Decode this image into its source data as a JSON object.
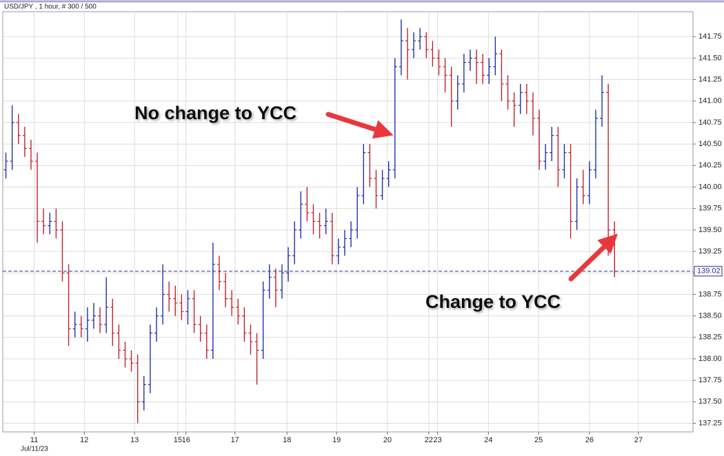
{
  "chart_data": {
    "type": "ohlc",
    "title": "USD/JPY , 1 hour, # 300 / 500",
    "x_date_label": "Jul/11/23",
    "annotations": [
      "No change to YCC",
      "Change to YCC"
    ],
    "up_color": "#1f2fa8",
    "down_color": "#c0202e",
    "grid": true,
    "last_price": 139.02,
    "last_price_color": "#2a2a9a",
    "xlim": [
      0,
      110
    ],
    "xticks": [
      {
        "value": 5,
        "label": "11"
      },
      {
        "value": 13,
        "label": "12"
      },
      {
        "value": 21,
        "label": "13"
      },
      {
        "value": 27.9,
        "label": "15"
      },
      {
        "value": 29.2,
        "label": "16"
      },
      {
        "value": 37,
        "label": "17"
      },
      {
        "value": 45.3,
        "label": "18"
      },
      {
        "value": 53.2,
        "label": "19"
      },
      {
        "value": 61.3,
        "label": "20"
      },
      {
        "value": 67.9,
        "label": "22"
      },
      {
        "value": 69.3,
        "label": "23"
      },
      {
        "value": 77.4,
        "label": "24"
      },
      {
        "value": 85.4,
        "label": "25"
      },
      {
        "value": 93.5,
        "label": "26"
      },
      {
        "value": 101.3,
        "label": "27"
      }
    ],
    "ylim": [
      137.15,
      142.04
    ],
    "yticks": [
      137.25,
      {
        "value": 137.5,
        "label": "137.50"
      },
      137.75,
      {
        "value": 138,
        "label": "138.00"
      },
      138.25,
      {
        "value": 138.5,
        "label": "138.50"
      },
      138.75,
      {
        "value": 139,
        "label": "139.00"
      },
      139.25,
      {
        "value": 139.5,
        "label": "139.50"
      },
      139.75,
      {
        "value": 140,
        "label": "140.00"
      },
      140.25,
      {
        "value": 140.5,
        "label": "140.50"
      },
      140.75,
      {
        "value": 141,
        "label": "141.00"
      },
      141.25,
      {
        "value": 141.5,
        "label": "141.50"
      },
      141.75
    ],
    "open": [
      140.2,
      140.3,
      140.75,
      140.6,
      140.45,
      140.3,
      139.6,
      139.55,
      139.6,
      139.5,
      139.0,
      138.35,
      138.4,
      138.35,
      138.45,
      138.5,
      138.4,
      138.6,
      138.3,
      138.1,
      138.0,
      137.95,
      137.5,
      137.7,
      138.3,
      138.5,
      138.75,
      138.7,
      138.65,
      138.55,
      138.7,
      138.4,
      138.3,
      138.1,
      139.1,
      138.9,
      138.7,
      138.6,
      138.5,
      138.3,
      138.2,
      138.1,
      138.8,
      138.95,
      138.8,
      139.0,
      139.2,
      139.5,
      139.8,
      139.7,
      139.6,
      139.55,
      139.6,
      139.2,
      139.3,
      139.4,
      139.5,
      139.9,
      140.4,
      140.1,
      139.9,
      140.1,
      140.2,
      141.4,
      141.7,
      141.6,
      141.7,
      141.75,
      141.6,
      141.5,
      141.4,
      141.3,
      141.0,
      141.2,
      141.45,
      141.5,
      141.45,
      141.3,
      141.4,
      141.55,
      141.2,
      141.0,
      140.95,
      141.1,
      141.0,
      140.8,
      140.3,
      140.4,
      140.6,
      140.2,
      140.4,
      139.6,
      140.0,
      139.9,
      140.2,
      140.8,
      141.1,
      139.5
    ],
    "high": [
      140.4,
      140.95,
      140.85,
      140.7,
      140.55,
      140.4,
      139.75,
      139.7,
      139.75,
      139.6,
      139.1,
      138.55,
      138.5,
      138.6,
      138.65,
      138.6,
      138.95,
      138.7,
      138.4,
      138.2,
      138.1,
      138.05,
      137.8,
      138.4,
      138.6,
      139.1,
      138.9,
      138.85,
      138.75,
      138.8,
      138.8,
      138.5,
      138.4,
      139.35,
      139.2,
      139.0,
      138.8,
      138.7,
      138.6,
      138.4,
      138.3,
      138.9,
      139.1,
      139.05,
      139.1,
      139.3,
      139.6,
      139.95,
      140.0,
      139.8,
      139.7,
      139.75,
      139.7,
      139.4,
      139.5,
      139.6,
      140.0,
      140.5,
      140.5,
      140.2,
      140.2,
      140.3,
      141.5,
      141.95,
      141.85,
      141.8,
      141.85,
      141.8,
      141.7,
      141.6,
      141.5,
      141.4,
      141.3,
      141.55,
      141.6,
      141.6,
      141.55,
      141.5,
      141.75,
      141.6,
      141.3,
      141.1,
      141.2,
      141.2,
      141.1,
      140.9,
      140.5,
      140.7,
      140.7,
      140.5,
      140.5,
      140.1,
      140.2,
      140.3,
      140.9,
      141.3,
      141.2,
      139.6
    ],
    "low": [
      140.1,
      140.2,
      140.5,
      140.35,
      140.2,
      139.35,
      139.45,
      139.45,
      139.4,
      138.9,
      138.15,
      138.25,
      138.25,
      138.2,
      138.35,
      138.3,
      138.3,
      138.15,
      138.0,
      137.9,
      137.85,
      137.25,
      137.4,
      137.6,
      138.2,
      138.4,
      138.55,
      138.5,
      138.45,
      138.4,
      138.3,
      138.2,
      138.0,
      138.0,
      138.8,
      138.6,
      138.5,
      138.4,
      138.2,
      138.05,
      137.7,
      138.0,
      138.7,
      138.6,
      138.7,
      138.9,
      139.1,
      139.4,
      139.6,
      139.45,
      139.4,
      139.45,
      139.1,
      139.1,
      139.2,
      139.3,
      139.4,
      139.8,
      140.0,
      139.75,
      139.85,
      140.0,
      140.1,
      141.3,
      141.25,
      141.5,
      141.6,
      141.5,
      141.4,
      141.3,
      141.1,
      140.7,
      140.9,
      141.1,
      141.35,
      141.2,
      141.2,
      141.2,
      141.3,
      141.0,
      140.9,
      140.7,
      140.85,
      140.85,
      140.6,
      140.2,
      140.2,
      140.3,
      140.0,
      140.1,
      139.4,
      139.5,
      139.8,
      139.8,
      140.1,
      140.7,
      139.2,
      138.95
    ],
    "close": [
      140.3,
      140.75,
      140.6,
      140.45,
      140.3,
      139.6,
      139.55,
      139.6,
      139.5,
      139.0,
      138.35,
      138.4,
      138.35,
      138.45,
      138.5,
      138.4,
      138.6,
      138.3,
      138.1,
      138.0,
      137.95,
      137.5,
      137.7,
      138.3,
      138.5,
      138.75,
      138.7,
      138.65,
      138.55,
      138.7,
      138.4,
      138.3,
      138.1,
      139.1,
      138.9,
      138.7,
      138.6,
      138.5,
      138.3,
      138.2,
      138.1,
      138.8,
      138.95,
      138.8,
      139.0,
      139.2,
      139.5,
      139.8,
      139.7,
      139.6,
      139.55,
      139.6,
      139.2,
      139.3,
      139.4,
      139.5,
      139.9,
      140.4,
      140.1,
      139.9,
      140.1,
      140.2,
      141.4,
      141.7,
      141.6,
      141.7,
      141.75,
      141.6,
      141.5,
      141.4,
      141.3,
      141.0,
      141.2,
      141.45,
      141.5,
      141.45,
      141.3,
      141.4,
      141.55,
      141.2,
      141.0,
      140.95,
      141.1,
      141.0,
      140.8,
      140.3,
      140.4,
      140.6,
      140.2,
      140.4,
      139.6,
      140.0,
      139.9,
      140.2,
      140.8,
      141.1,
      139.5,
      139.02
    ]
  }
}
